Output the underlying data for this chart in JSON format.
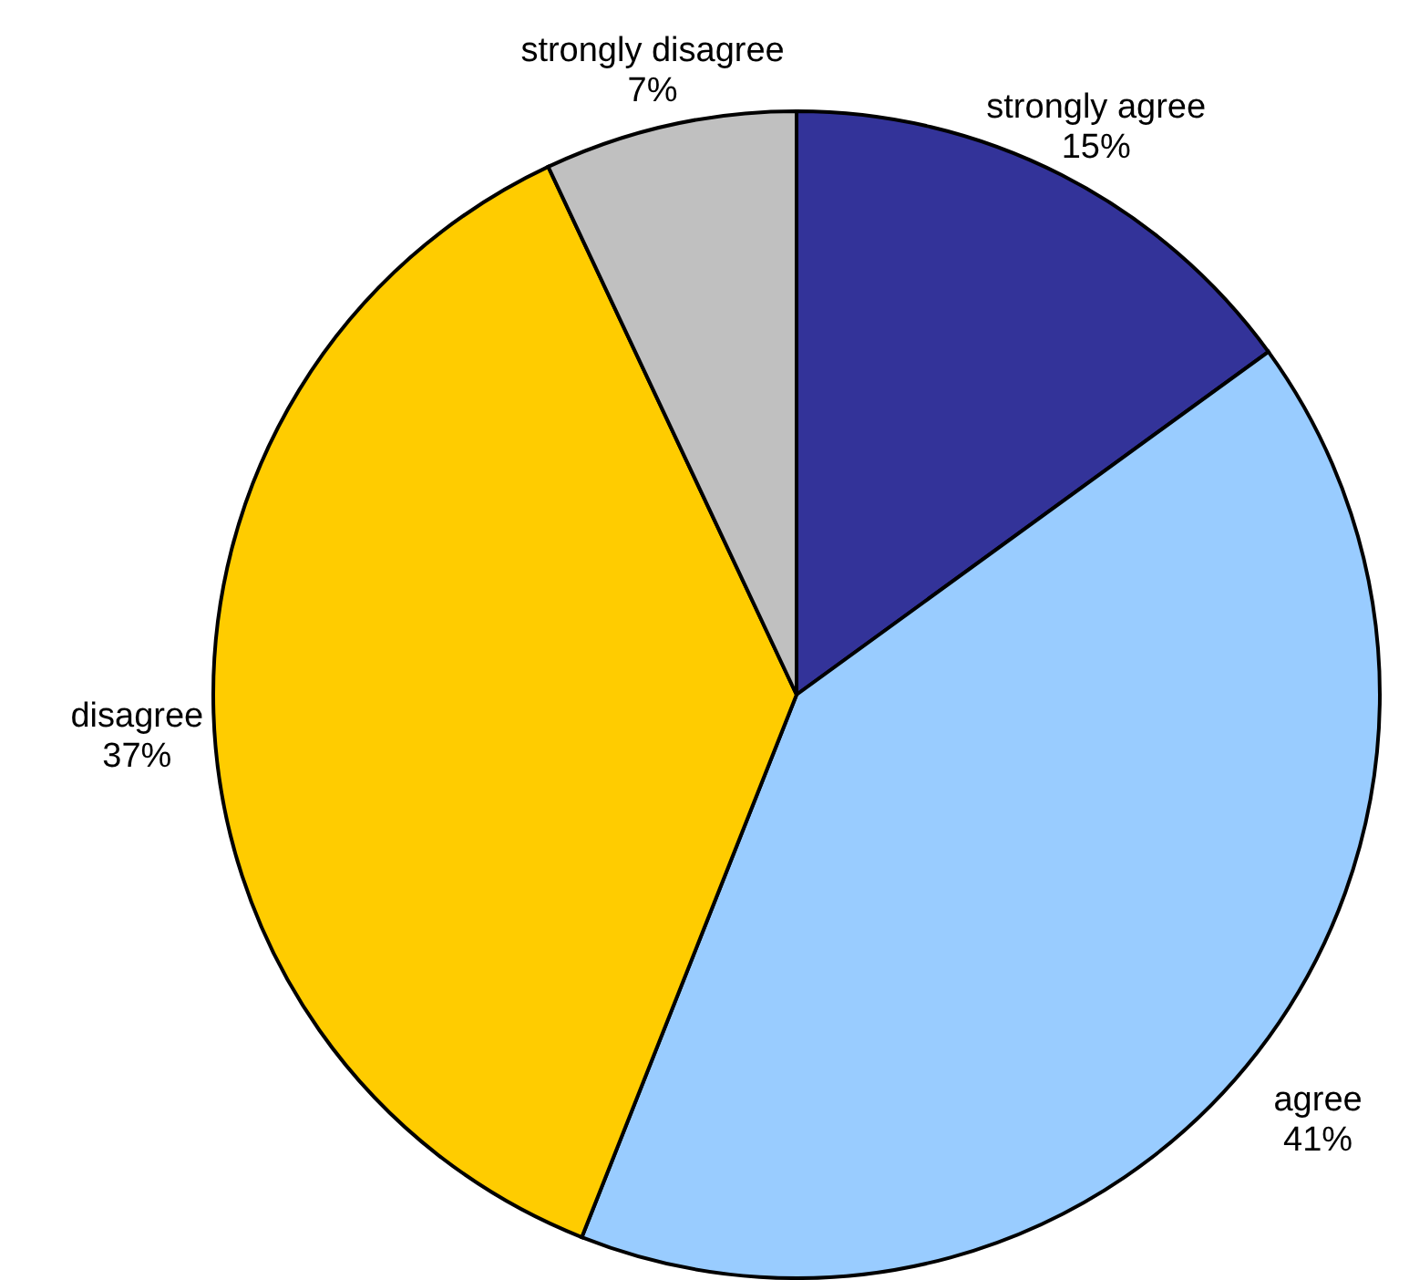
{
  "chart_data": {
    "type": "pie",
    "categories": [
      "strongly agree",
      "agree",
      "disagree",
      "strongly disagree"
    ],
    "values": [
      15,
      41,
      37,
      7
    ],
    "value_labels": [
      "15%",
      "41%",
      "37%",
      "7%"
    ],
    "colors": [
      "#333399",
      "#99ccff",
      "#ffcc00",
      "#c0c0c0"
    ]
  }
}
